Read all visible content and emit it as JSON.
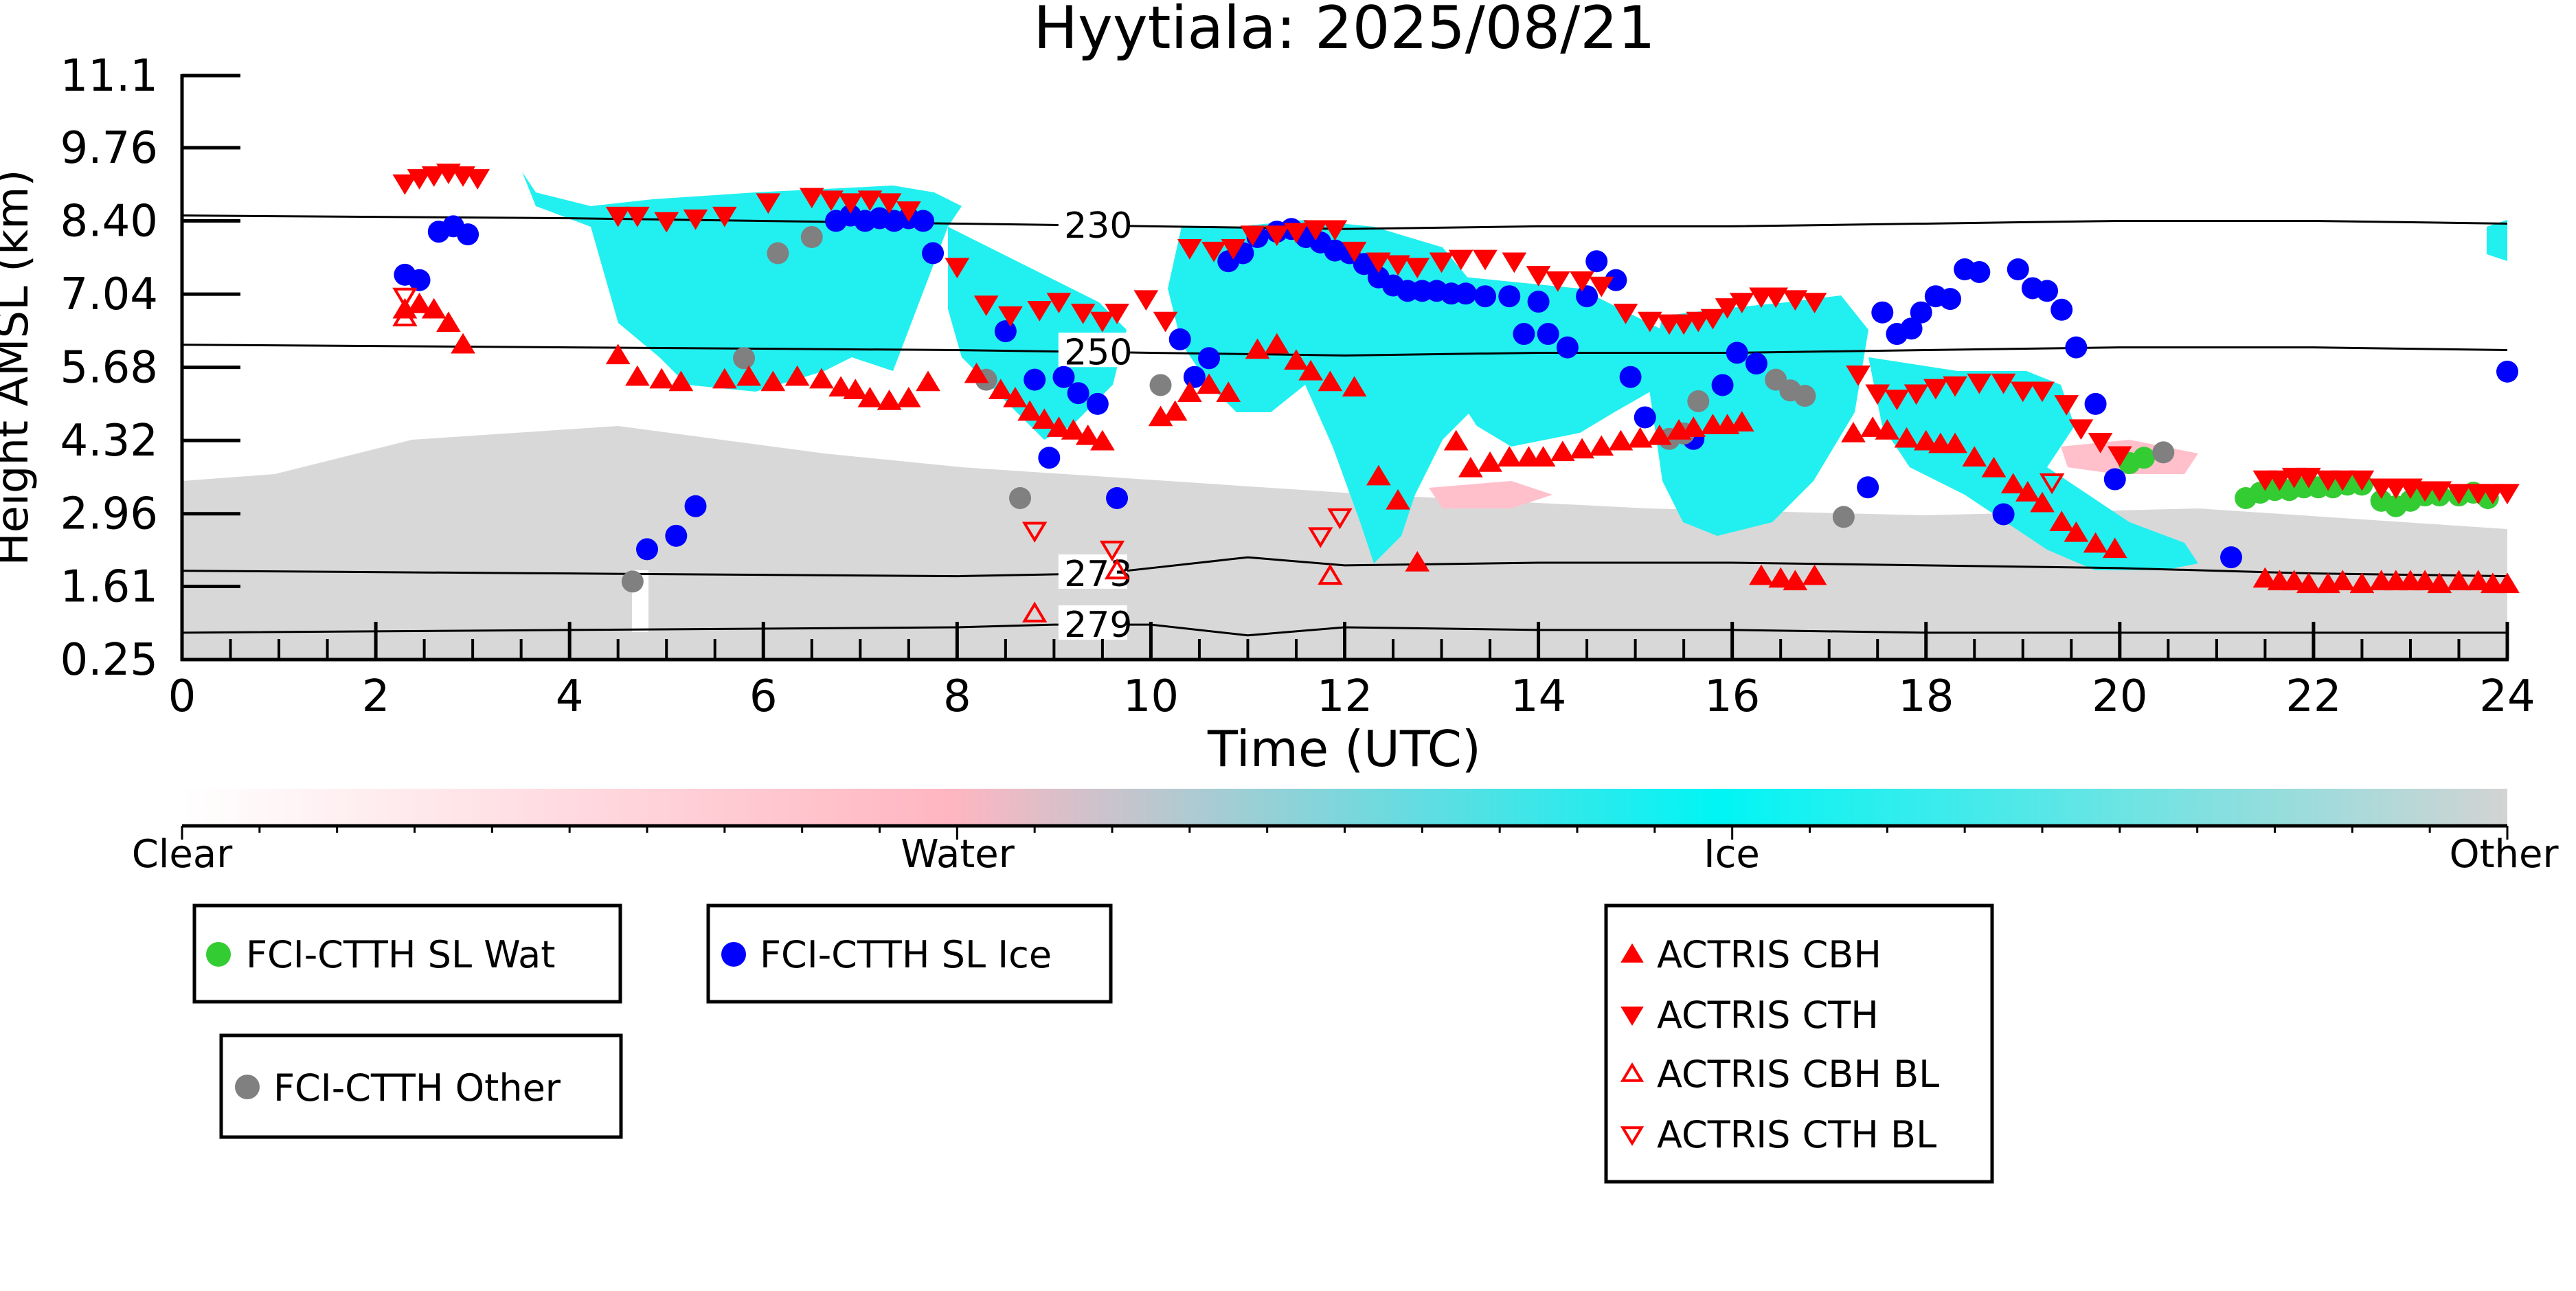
{
  "chart_data": {
    "type": "scatter",
    "title": "Hyytiala: 2025/08/21",
    "xlabel": "Time (UTC)",
    "ylabel": "Height AMSL (km)",
    "xlim": [
      0,
      24
    ],
    "ylim": [
      0.25,
      11.1
    ],
    "x_ticks": [
      "0",
      "2",
      "4",
      "6",
      "8",
      "10",
      "12",
      "14",
      "16",
      "18",
      "20",
      "22",
      "24"
    ],
    "y_ticks": [
      "0.25",
      "1.61",
      "2.96",
      "4.32",
      "5.68",
      "7.04",
      "8.40",
      "9.76",
      "11.1"
    ],
    "grid": false,
    "colorbar": {
      "labels": [
        "Clear",
        "Water",
        "Ice",
        "Other"
      ],
      "colors": [
        "#ffffff",
        "#ffb6c1",
        "#00ffff",
        "#d3d3d3"
      ]
    },
    "isotherms": [
      {
        "label": "230",
        "x": [
          0,
          4,
          8,
          10,
          12,
          14,
          16,
          18,
          20,
          22,
          24
        ],
        "y": [
          8.5,
          8.45,
          8.35,
          8.3,
          8.25,
          8.3,
          8.3,
          8.35,
          8.4,
          8.4,
          8.35
        ]
      },
      {
        "label": "250",
        "x": [
          0,
          4,
          8,
          10,
          12,
          14,
          16,
          18,
          20,
          22,
          24
        ],
        "y": [
          6.1,
          6.05,
          6.0,
          5.95,
          5.9,
          5.95,
          5.95,
          6.0,
          6.05,
          6.05,
          6.0
        ]
      },
      {
        "label": "273",
        "x": [
          0,
          4,
          8,
          9.5,
          10,
          11,
          12,
          14,
          16,
          18,
          20,
          22,
          24
        ],
        "y": [
          1.9,
          1.85,
          1.8,
          1.85,
          1.95,
          2.15,
          2.0,
          2.05,
          2.05,
          2.0,
          1.95,
          1.85,
          1.8
        ]
      },
      {
        "label": "279",
        "x": [
          0,
          4,
          8,
          9,
          10,
          11,
          12,
          14,
          16,
          18,
          20,
          22,
          24
        ],
        "y": [
          0.75,
          0.8,
          0.85,
          0.9,
          0.9,
          0.7,
          0.85,
          0.8,
          0.8,
          0.75,
          0.75,
          0.75,
          0.75
        ]
      }
    ],
    "legend": [
      {
        "name": "FCI-CTTH SL Wat",
        "marker": "circle",
        "color": "#33cc33"
      },
      {
        "name": "FCI-CTTH SL Ice",
        "marker": "circle",
        "color": "#0000ff"
      },
      {
        "name": "FCI-CTTH Other",
        "marker": "circle",
        "color": "#808080"
      },
      {
        "name": "ACTRIS CBH",
        "marker": "triangle-up",
        "color": "#ff0000"
      },
      {
        "name": "ACTRIS CTH",
        "marker": "triangle-down",
        "color": "#ff0000"
      },
      {
        "name": "ACTRIS CBH BL",
        "marker": "triangle-up-open",
        "color": "#ff0000"
      },
      {
        "name": "ACTRIS CTH BL",
        "marker": "triangle-down-open",
        "color": "#ff0000"
      }
    ],
    "series": [
      {
        "name": "FCI-CTTH SL Wat",
        "marker": "circle",
        "color": "#33cc33",
        "x": [
          20.1,
          20.25,
          21.3,
          21.45,
          21.6,
          21.75,
          21.9,
          22.05,
          22.2,
          22.35,
          22.5,
          22.7,
          22.85,
          23.0,
          23.15,
          23.3,
          23.5,
          23.65,
          23.8
        ],
        "y": [
          3.9,
          4.0,
          3.25,
          3.35,
          3.4,
          3.4,
          3.45,
          3.45,
          3.45,
          3.5,
          3.5,
          3.2,
          3.1,
          3.2,
          3.3,
          3.3,
          3.3,
          3.35,
          3.25
        ]
      },
      {
        "name": "FCI-CTTH SL Ice",
        "marker": "circle",
        "color": "#0000ff",
        "x": [
          2.3,
          2.45,
          2.65,
          2.8,
          2.95,
          4.8,
          5.1,
          5.3,
          6.75,
          6.9,
          7.05,
          7.2,
          7.35,
          7.5,
          7.65,
          7.75,
          8.5,
          8.8,
          8.95,
          9.1,
          9.25,
          9.45,
          9.65,
          10.3,
          10.45,
          10.6,
          10.8,
          10.95,
          11.1,
          11.3,
          11.45,
          11.6,
          11.75,
          11.9,
          12.05,
          12.2,
          12.35,
          12.5,
          12.65,
          12.8,
          12.95,
          13.1,
          13.25,
          13.45,
          13.7,
          13.85,
          14.0,
          14.1,
          14.3,
          14.5,
          14.6,
          14.8,
          14.95,
          15.1,
          15.6,
          15.9,
          16.05,
          16.25,
          17.4,
          17.55,
          17.7,
          17.85,
          17.95,
          18.1,
          18.25,
          18.4,
          18.55,
          18.8,
          18.95,
          19.1,
          19.25,
          19.4,
          19.55,
          19.75,
          19.95,
          21.15,
          24.0
        ],
        "y": [
          7.4,
          7.3,
          8.2,
          8.3,
          8.15,
          2.3,
          2.55,
          3.1,
          8.4,
          8.5,
          8.4,
          8.45,
          8.4,
          8.45,
          8.4,
          7.8,
          6.35,
          5.45,
          4.0,
          5.5,
          5.2,
          5.0,
          3.25,
          6.2,
          5.5,
          5.85,
          7.65,
          7.8,
          8.1,
          8.2,
          8.25,
          8.1,
          8.0,
          7.85,
          7.8,
          7.6,
          7.35,
          7.2,
          7.1,
          7.1,
          7.1,
          7.05,
          7.05,
          7.0,
          7.0,
          6.3,
          6.9,
          6.3,
          6.05,
          7.0,
          7.65,
          7.3,
          5.5,
          4.75,
          4.35,
          5.35,
          5.95,
          5.75,
          3.45,
          6.7,
          6.3,
          6.4,
          6.7,
          7.0,
          6.95,
          7.5,
          7.45,
          2.95,
          7.5,
          7.15,
          7.1,
          6.75,
          6.05,
          5.0,
          3.6,
          2.15,
          5.6
        ]
      },
      {
        "name": "FCI-CTTH Other",
        "marker": "circle",
        "color": "#808080",
        "x": [
          4.65,
          5.8,
          6.15,
          6.5,
          8.3,
          8.65,
          10.1,
          15.35,
          15.5,
          15.65,
          16.45,
          16.6,
          16.75,
          17.15,
          20.45
        ],
        "y": [
          1.7,
          5.85,
          7.8,
          8.1,
          5.45,
          3.25,
          5.35,
          4.35,
          4.45,
          5.05,
          5.45,
          5.25,
          5.15,
          2.9,
          4.1
        ]
      },
      {
        "name": "ACTRIS CBH",
        "marker": "triangle-up",
        "color": "#ff0000",
        "x": [
          2.3,
          2.45,
          2.6,
          2.75,
          2.9,
          4.5,
          4.7,
          4.95,
          5.15,
          5.6,
          5.85,
          6.1,
          6.35,
          6.6,
          6.8,
          6.95,
          7.1,
          7.3,
          7.5,
          7.7,
          8.2,
          8.45,
          8.6,
          8.75,
          8.9,
          9.05,
          9.2,
          9.35,
          9.5,
          10.1,
          10.25,
          10.4,
          10.6,
          10.8,
          11.1,
          11.3,
          11.5,
          11.65,
          11.85,
          12.1,
          12.35,
          12.55,
          12.75,
          13.15,
          13.3,
          13.5,
          13.7,
          13.9,
          14.05,
          14.25,
          14.45,
          14.65,
          14.85,
          15.05,
          15.25,
          15.45,
          15.6,
          15.8,
          15.95,
          16.1,
          16.3,
          16.5,
          16.65,
          16.85,
          17.25,
          17.45,
          17.6,
          17.8,
          18.0,
          18.15,
          18.3,
          18.5,
          18.7,
          18.9,
          19.05,
          19.2,
          19.4,
          19.55,
          19.75,
          19.95,
          21.5,
          21.65,
          21.8,
          21.95,
          22.15,
          22.3,
          22.5,
          22.7,
          22.85,
          23.0,
          23.15,
          23.3,
          23.5,
          23.7,
          23.85,
          24.0
        ],
        "y": [
          6.75,
          6.85,
          6.75,
          6.5,
          6.1,
          5.9,
          5.5,
          5.45,
          5.4,
          5.45,
          5.5,
          5.4,
          5.5,
          5.45,
          5.3,
          5.25,
          5.1,
          5.05,
          5.1,
          5.4,
          5.55,
          5.25,
          5.1,
          4.85,
          4.7,
          4.55,
          4.5,
          4.4,
          4.3,
          4.75,
          4.85,
          5.2,
          5.35,
          5.2,
          6.0,
          6.1,
          5.8,
          5.6,
          5.4,
          5.3,
          3.65,
          3.2,
          2.05,
          4.3,
          3.8,
          3.9,
          4.0,
          4.0,
          4.0,
          4.1,
          4.15,
          4.2,
          4.3,
          4.35,
          4.4,
          4.5,
          4.55,
          4.6,
          4.6,
          4.65,
          1.8,
          1.75,
          1.7,
          1.8,
          4.45,
          4.55,
          4.5,
          4.35,
          4.3,
          4.25,
          4.25,
          4.0,
          3.8,
          3.5,
          3.35,
          3.15,
          2.8,
          2.6,
          2.4,
          2.3,
          1.75,
          1.7,
          1.7,
          1.65,
          1.65,
          1.7,
          1.65,
          1.7,
          1.7,
          1.7,
          1.7,
          1.65,
          1.7,
          1.7,
          1.65,
          1.65
        ]
      },
      {
        "name": "ACTRIS CTH",
        "marker": "triangle-down",
        "color": "#ff0000",
        "x": [
          2.3,
          2.45,
          2.6,
          2.75,
          2.9,
          3.05,
          4.5,
          4.7,
          5.0,
          5.3,
          5.6,
          6.05,
          6.5,
          6.7,
          6.9,
          7.1,
          7.3,
          7.5,
          8.0,
          8.3,
          8.55,
          8.85,
          9.05,
          9.3,
          9.5,
          9.65,
          9.95,
          10.15,
          10.4,
          10.65,
          10.85,
          11.05,
          11.3,
          11.5,
          11.7,
          11.9,
          12.1,
          12.35,
          12.55,
          12.75,
          13.0,
          13.2,
          13.45,
          13.75,
          14.0,
          14.2,
          14.45,
          14.65,
          14.9,
          15.15,
          15.35,
          15.5,
          15.65,
          15.8,
          15.95,
          16.1,
          16.3,
          16.45,
          16.65,
          16.85,
          17.3,
          17.5,
          17.7,
          17.9,
          18.1,
          18.3,
          18.55,
          18.8,
          19.0,
          19.2,
          19.45,
          19.6,
          19.8,
          20.0,
          21.5,
          21.65,
          21.8,
          21.95,
          22.15,
          22.3,
          22.5,
          22.7,
          22.85,
          23.0,
          23.15,
          23.3,
          23.5,
          23.7,
          23.85,
          24.0
        ],
        "y": [
          9.1,
          9.2,
          9.25,
          9.3,
          9.25,
          9.2,
          8.5,
          8.5,
          8.4,
          8.45,
          8.5,
          8.75,
          8.85,
          8.8,
          8.75,
          8.8,
          8.75,
          8.6,
          7.55,
          6.85,
          6.65,
          6.75,
          6.9,
          6.7,
          6.55,
          6.7,
          6.95,
          6.55,
          7.9,
          7.85,
          7.9,
          8.15,
          8.15,
          8.2,
          8.25,
          8.25,
          7.85,
          7.65,
          7.6,
          7.55,
          7.65,
          7.7,
          7.7,
          7.65,
          7.4,
          7.3,
          7.3,
          7.2,
          6.7,
          6.55,
          6.5,
          6.5,
          6.55,
          6.6,
          6.8,
          6.9,
          7.0,
          7.0,
          6.95,
          6.9,
          5.55,
          5.2,
          5.1,
          5.2,
          5.3,
          5.35,
          5.4,
          5.4,
          5.25,
          5.25,
          5.0,
          4.55,
          4.3,
          4.05,
          3.6,
          3.6,
          3.65,
          3.65,
          3.6,
          3.6,
          3.6,
          3.45,
          3.45,
          3.45,
          3.4,
          3.4,
          3.35,
          3.35,
          3.35,
          3.35
        ]
      },
      {
        "name": "ACTRIS CBH BL",
        "marker": "triangle-up-open",
        "color": "#ff0000",
        "x": [
          2.3,
          8.8,
          9.65,
          11.85
        ],
        "y": [
          6.6,
          1.1,
          1.9,
          1.8
        ]
      },
      {
        "name": "ACTRIS CTH BL",
        "marker": "triangle-down-open",
        "color": "#ff0000",
        "x": [
          2.3,
          8.8,
          9.6,
          11.75,
          11.95,
          19.3
        ],
        "y": [
          7.0,
          2.65,
          2.3,
          2.55,
          2.9,
          3.55
        ]
      }
    ]
  }
}
